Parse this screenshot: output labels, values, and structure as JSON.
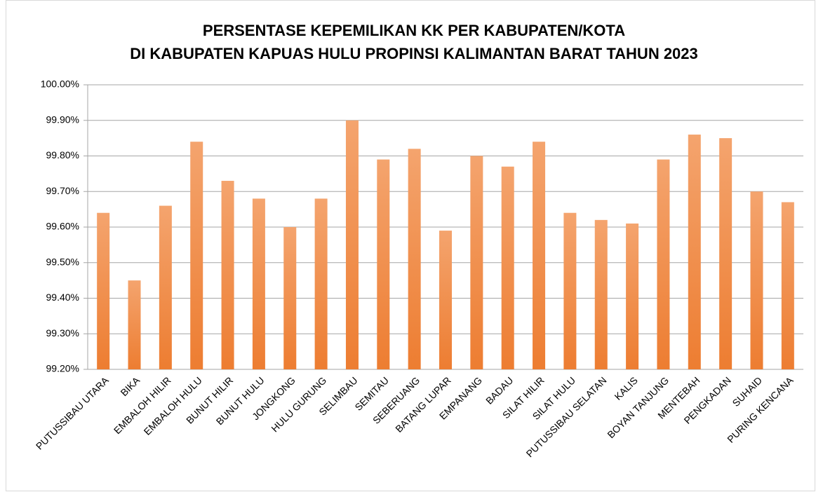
{
  "chart_data": {
    "type": "bar",
    "title": [
      "PERSENTASE KEPEMILIKAN KK PER KABUPATEN/KOTA",
      "DI KABUPATEN KAPUAS HULU PROPINSI KALIMANTAN BARAT TAHUN 2023"
    ],
    "categories": [
      "PUTUSSIBAU UTARA",
      "BIKA",
      "EMBALOH HILIR",
      "EMBALOH HULU",
      "BUNUT HILIR",
      "BUNUT HULU",
      "JONGKONG",
      "HULU GURUNG",
      "SELIMBAU",
      "SEMITAU",
      "SEBERUANG",
      "BATANG LUPAR",
      "EMPANANG",
      "BADAU",
      "SILAT HILIR",
      "SILAT HULU",
      "PUTUSSIBAU SELATAN",
      "KALIS",
      "BOYAN TANJUNG",
      "MENTEBAH",
      "PENGKADAN",
      "SUHAID",
      "PURING KENCANA"
    ],
    "values": [
      99.64,
      99.45,
      99.66,
      99.84,
      99.73,
      99.68,
      99.6,
      99.68,
      99.9,
      99.79,
      99.82,
      99.59,
      99.8,
      99.77,
      99.84,
      99.64,
      99.62,
      99.61,
      99.79,
      99.86,
      99.85,
      99.7,
      99.67
    ],
    "color": "#ed7d31",
    "ylim": [
      99.2,
      100.0
    ],
    "yticks": [
      {
        "value": 99.2,
        "label": "99.20%"
      },
      {
        "value": 99.3,
        "label": "99.30%"
      },
      {
        "value": 99.4,
        "label": "99.40%"
      },
      {
        "value": 99.5,
        "label": "99.50%"
      },
      {
        "value": 99.6,
        "label": "99.60%"
      },
      {
        "value": 99.7,
        "label": "99.70%"
      },
      {
        "value": 99.8,
        "label": "99.80%"
      },
      {
        "value": 99.9,
        "label": "99.90%"
      },
      {
        "value": 100.0,
        "label": "100.00%"
      }
    ],
    "grid": true
  }
}
